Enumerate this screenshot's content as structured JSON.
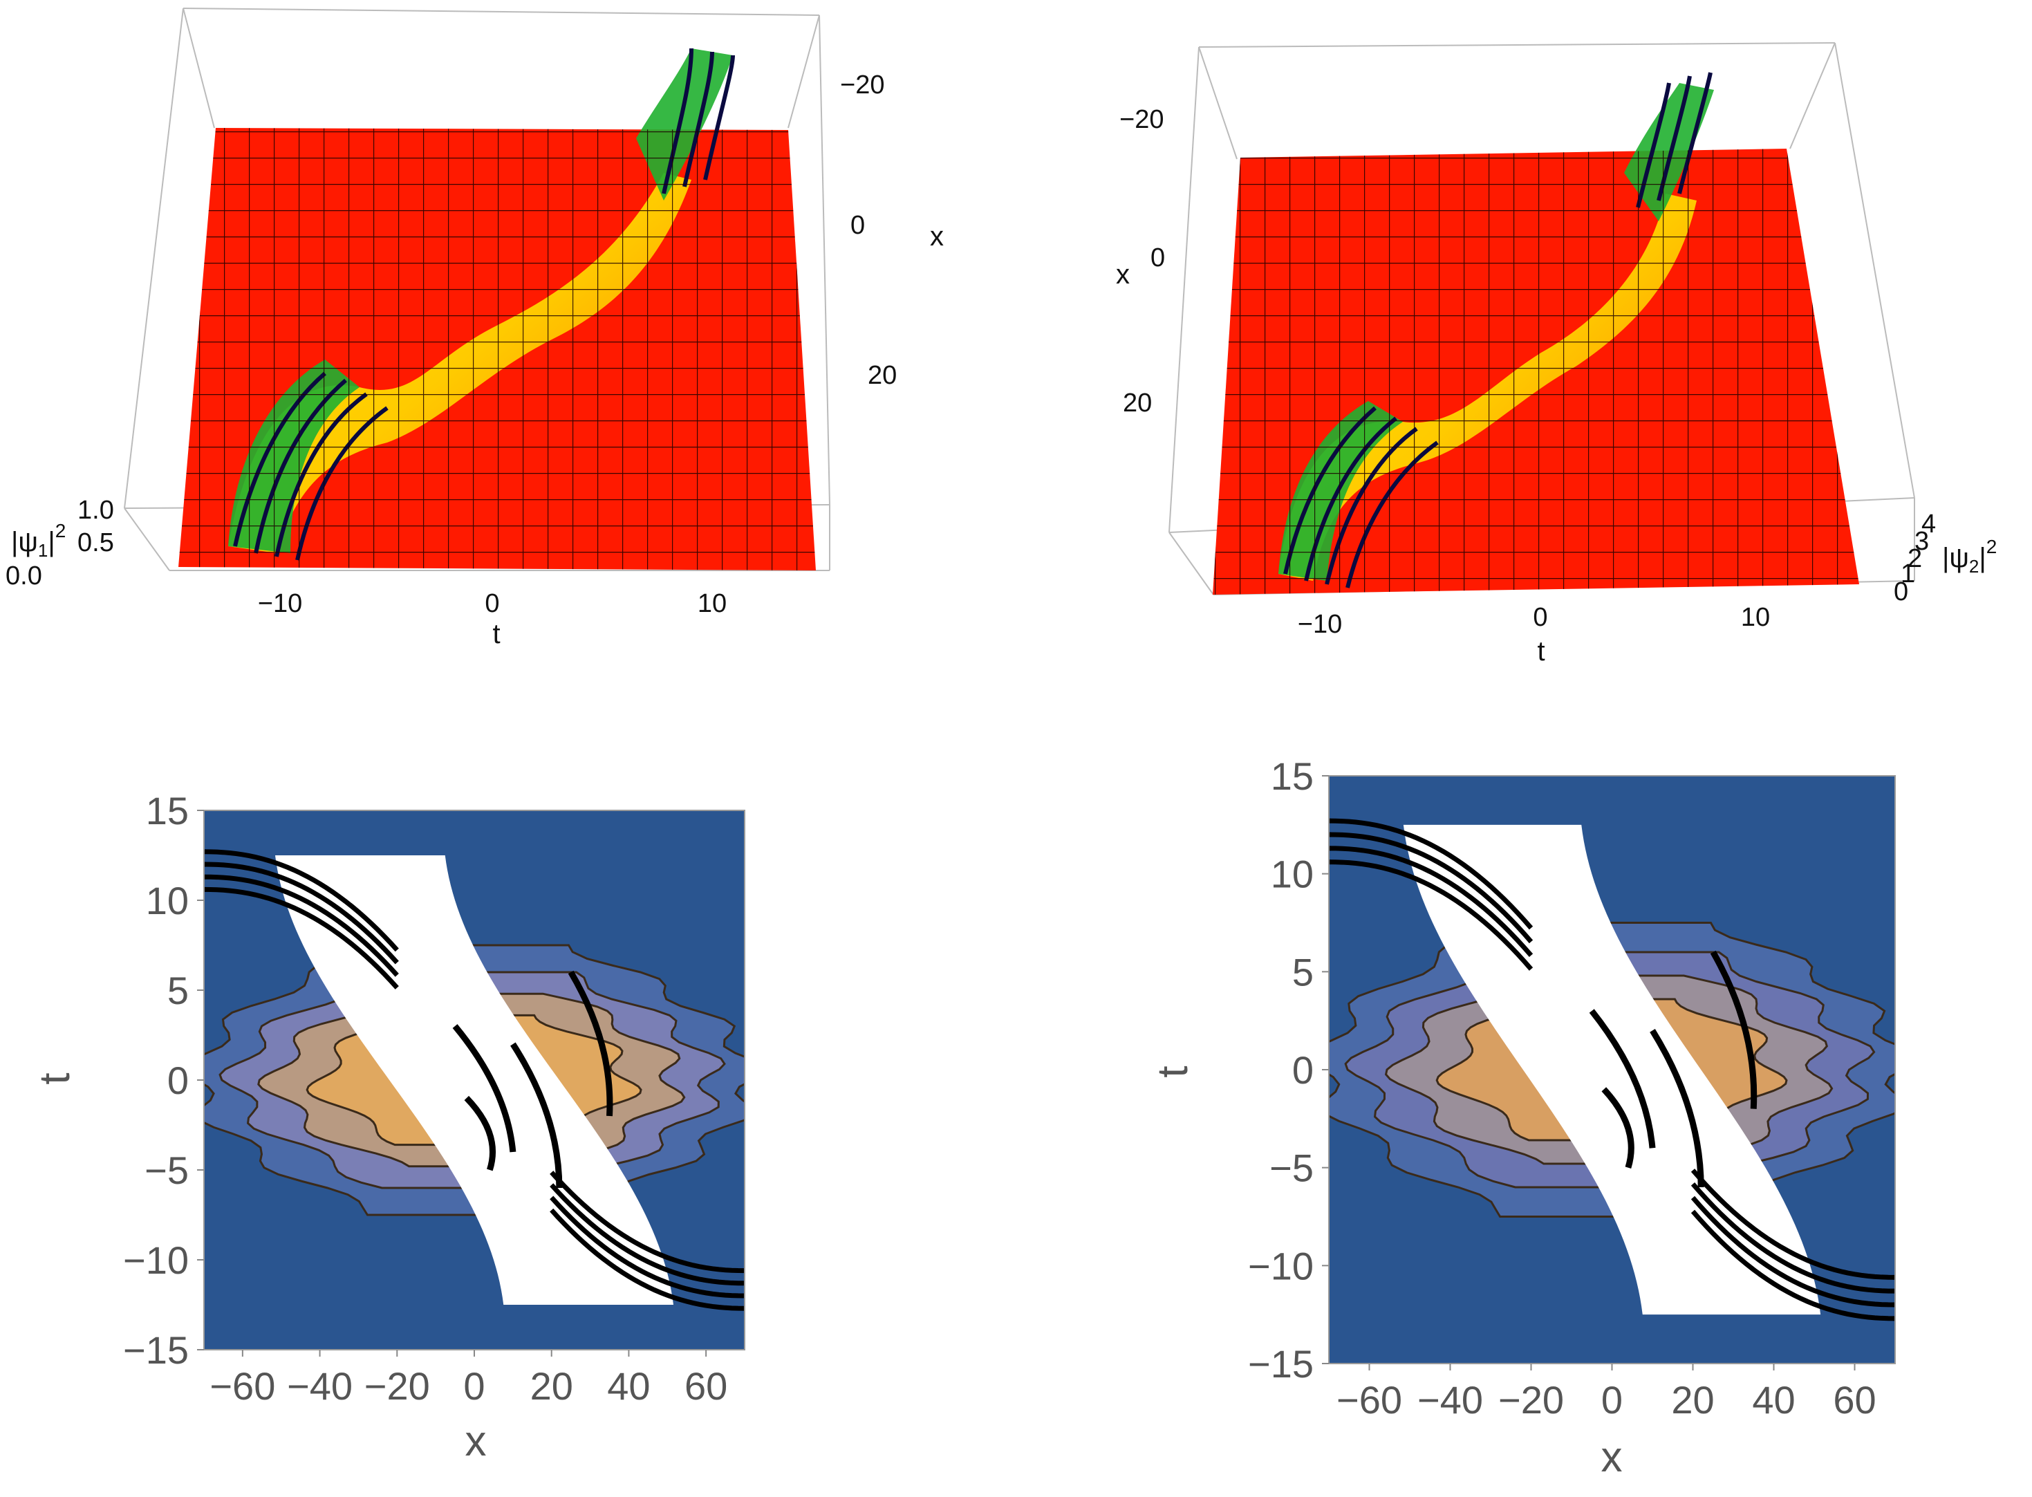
{
  "chart_data": [
    {
      "type": "surface3d",
      "z_label_prefix": "|ψ",
      "z_label_sub": "1",
      "z_label_suffix": "|",
      "z_label_sup": "2",
      "xlabel": "t",
      "ylabel": "x",
      "t_ticks": [
        "−10",
        "0",
        "10"
      ],
      "x_ticks": [
        "−20",
        "0",
        "20"
      ],
      "z_ticks": [
        "1.0",
        "0.5",
        "0.0"
      ],
      "t_range": [
        -15,
        15
      ],
      "x_range": [
        -30,
        30
      ],
      "z_range": [
        0,
        1
      ],
      "colors": {
        "floor": "#ff1a00",
        "ridge_low": "#ffe600",
        "ridge_mid": "#20c020",
        "ridge_high": "#1a1a9a"
      }
    },
    {
      "type": "surface3d",
      "z_label_prefix": "|ψ",
      "z_label_sub": "2",
      "z_label_suffix": "|",
      "z_label_sup": "2",
      "xlabel": "t",
      "ylabel": "x",
      "t_ticks": [
        "−10",
        "0",
        "10"
      ],
      "x_ticks": [
        "−20",
        "0",
        "20"
      ],
      "z_ticks": [
        "4",
        "3",
        "2",
        "1",
        "0"
      ],
      "t_range": [
        -15,
        15
      ],
      "x_range": [
        -30,
        30
      ],
      "z_range": [
        0,
        4
      ],
      "colors": {
        "floor": "#ff1a00",
        "ridge_low": "#ffe600",
        "ridge_mid": "#20c020",
        "ridge_high": "#1a1a9a"
      }
    },
    {
      "type": "contour",
      "xlabel": "x",
      "ylabel": "t",
      "xlim": [
        -70,
        70
      ],
      "ylim": [
        -15,
        15
      ],
      "x_ticks": [
        -60,
        -40,
        -20,
        0,
        20,
        40,
        60
      ],
      "y_ticks": [
        -15,
        -10,
        -5,
        0,
        5,
        10,
        15
      ],
      "x_tick_labels": [
        "−60",
        "−40",
        "−20",
        "0",
        "20",
        "40",
        "60"
      ],
      "y_tick_labels": [
        "−15",
        "−10",
        "−5",
        "0",
        "5",
        "10",
        "15"
      ],
      "colors": {
        "background": "#2a5590",
        "level1": "#4a6aa8",
        "level2": "#7a7fb5",
        "level3": "#b89a82",
        "level4": "#e0a860",
        "peak": "#ffffff"
      }
    },
    {
      "type": "contour",
      "xlabel": "x",
      "ylabel": "t",
      "xlim": [
        -70,
        70
      ],
      "ylim": [
        -15,
        15
      ],
      "x_ticks": [
        -60,
        -40,
        -20,
        0,
        20,
        40,
        60
      ],
      "y_ticks": [
        -15,
        -10,
        -5,
        0,
        5,
        10,
        15
      ],
      "x_tick_labels": [
        "−60",
        "−40",
        "−20",
        "0",
        "20",
        "40",
        "60"
      ],
      "y_tick_labels": [
        "−15",
        "−10",
        "−5",
        "0",
        "5",
        "10",
        "15"
      ],
      "colors": {
        "background": "#2a5590",
        "level1": "#4a6aa8",
        "level2": "#6a74b0",
        "level3": "#9a8f9a",
        "level4": "#d89f62",
        "peak": "#ffffff"
      }
    }
  ]
}
